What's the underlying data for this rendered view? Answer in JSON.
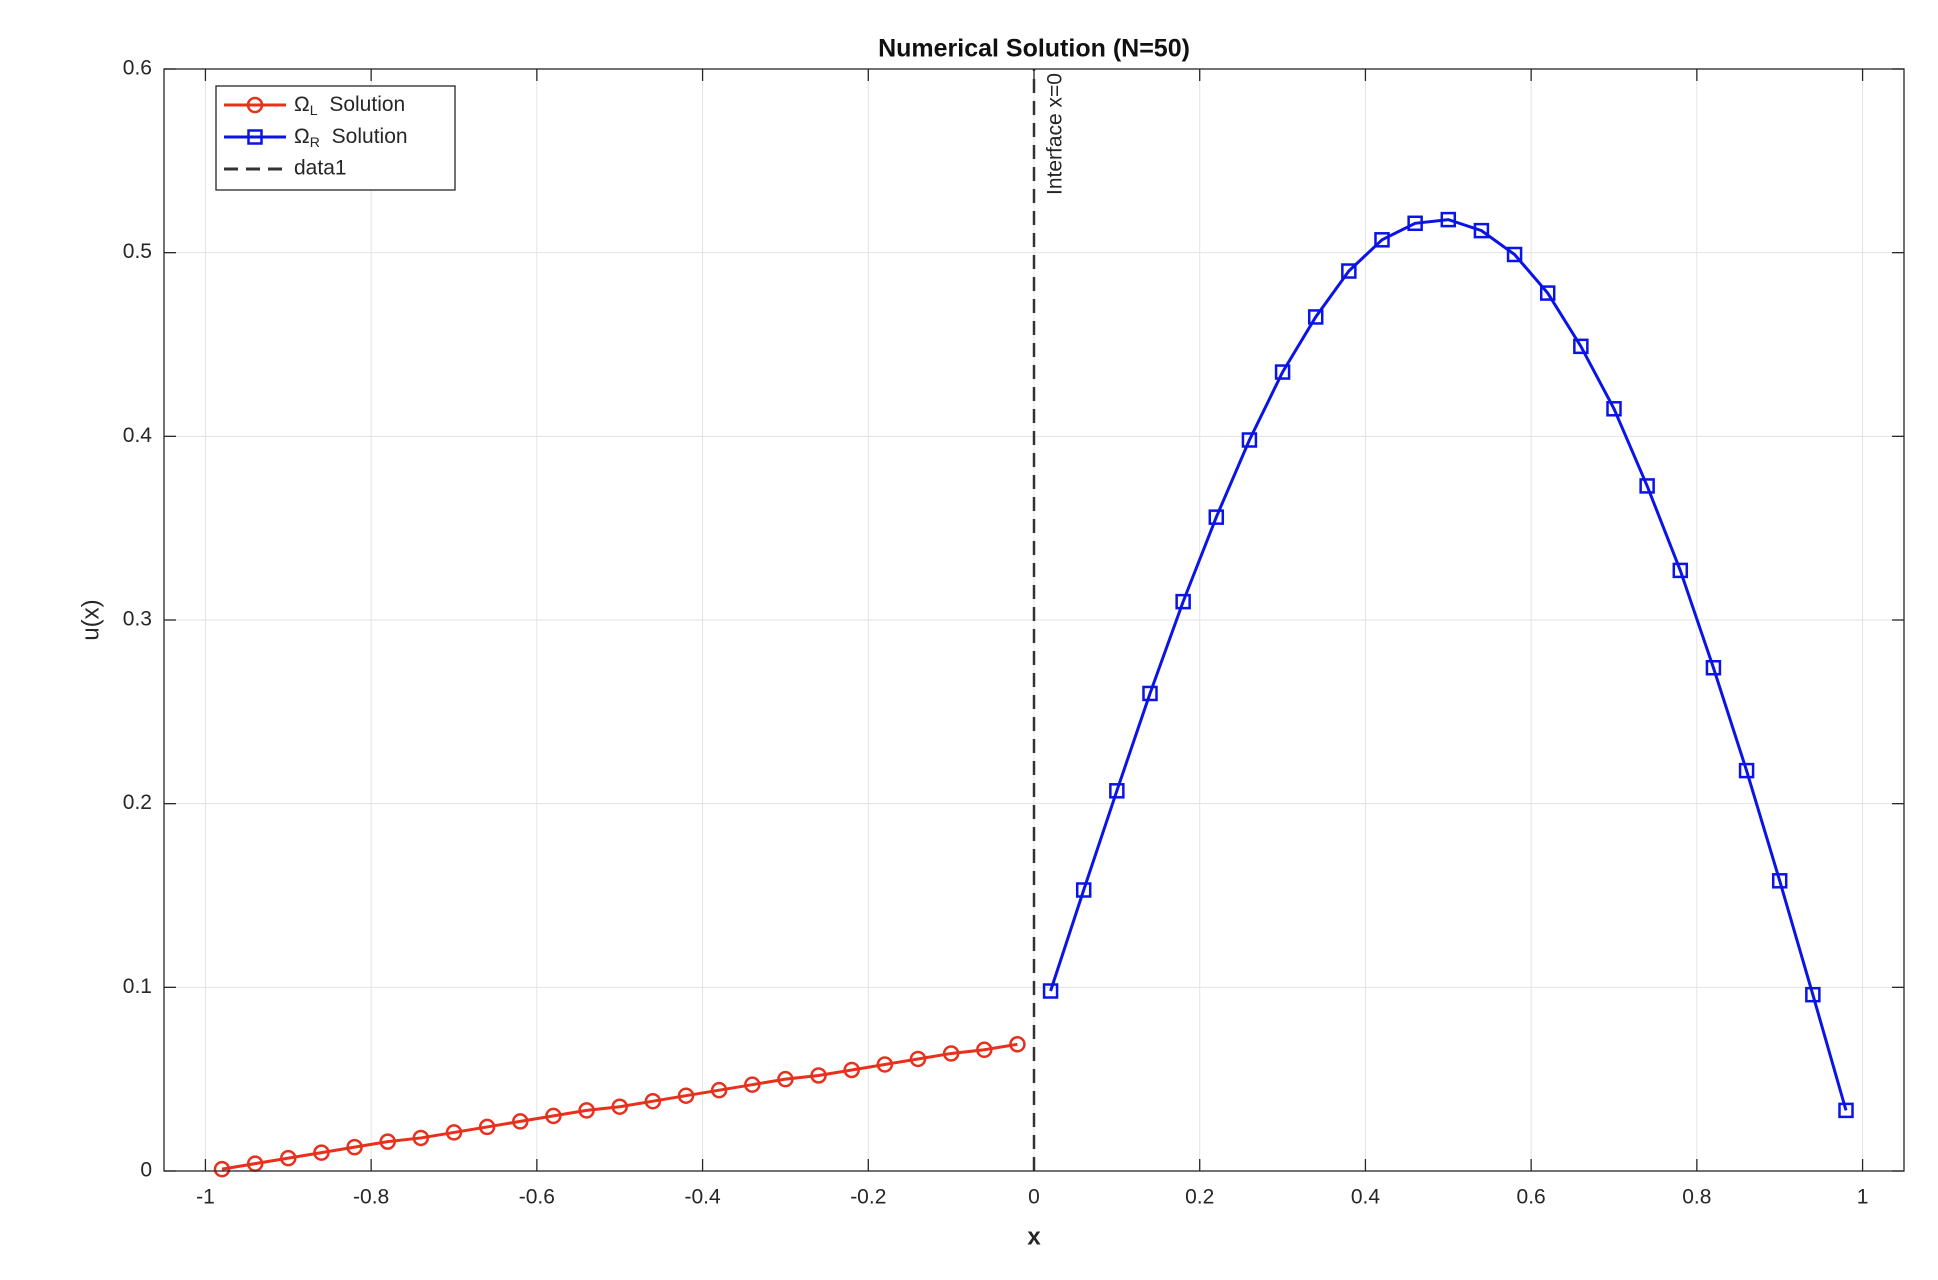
{
  "chart_data": {
    "type": "line",
    "title": "Numerical Solution (N=50)",
    "x_label": "x",
    "y_label": "u(x)",
    "xlim": [
      -1.05,
      1.05
    ],
    "ylim": [
      0,
      0.6
    ],
    "xticks": [
      -1,
      -0.8,
      -0.6,
      -0.4,
      -0.2,
      0,
      0.2,
      0.4,
      0.6,
      0.8,
      1
    ],
    "yticks": [
      0,
      0.1,
      0.2,
      0.3,
      0.4,
      0.5,
      0.6
    ],
    "grid": true,
    "legend": "upper-left",
    "annotations": [
      {
        "text": "Interface x=0",
        "x": 0,
        "y": 0.6
      }
    ],
    "series": [
      {
        "name": "ΩL Solution",
        "color": "#e8301c",
        "marker": "circle",
        "style": "solid",
        "x": [
          -0.98,
          -0.94,
          -0.9,
          -0.86,
          -0.82,
          -0.78,
          -0.74,
          -0.7,
          -0.66,
          -0.62,
          -0.58,
          -0.54,
          -0.5,
          -0.46,
          -0.42,
          -0.38,
          -0.34,
          -0.3,
          -0.26,
          -0.22,
          -0.18,
          -0.14,
          -0.1,
          -0.06,
          -0.02
        ],
        "values": [
          0.001,
          0.004,
          0.007,
          0.01,
          0.013,
          0.016,
          0.018,
          0.021,
          0.024,
          0.027,
          0.03,
          0.033,
          0.035,
          0.038,
          0.041,
          0.044,
          0.047,
          0.05,
          0.052,
          0.055,
          0.058,
          0.061,
          0.064,
          0.066,
          0.069
        ]
      },
      {
        "name": "ΩR Solution",
        "color": "#0a14e6",
        "marker": "square",
        "style": "solid",
        "x": [
          0.02,
          0.06,
          0.1,
          0.14,
          0.18,
          0.22,
          0.26,
          0.3,
          0.34,
          0.38,
          0.42,
          0.46,
          0.5,
          0.54,
          0.58,
          0.62,
          0.66,
          0.7,
          0.74,
          0.78,
          0.82,
          0.86,
          0.9,
          0.94,
          0.98
        ],
        "values": [
          0.098,
          0.153,
          0.207,
          0.26,
          0.31,
          0.356,
          0.398,
          0.435,
          0.465,
          0.49,
          0.507,
          0.516,
          0.518,
          0.512,
          0.499,
          0.478,
          0.449,
          0.415,
          0.373,
          0.327,
          0.274,
          0.218,
          0.158,
          0.096,
          0.033
        ]
      },
      {
        "name": "data1",
        "color": "#333333",
        "marker": "none",
        "style": "dashed",
        "x": [
          0,
          0
        ],
        "values": [
          0,
          0.6
        ]
      }
    ]
  }
}
